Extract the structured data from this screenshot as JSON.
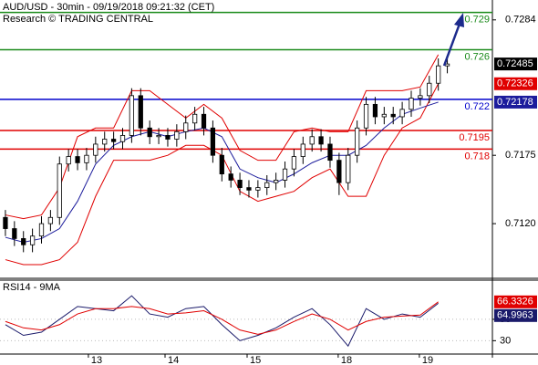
{
  "chart_data": [
    {
      "type": "candlestick",
      "title": "AUD/USD - 30min - 09/19/2018 09:21:32 (CET)",
      "subtitle": "Research © TRADING CENTRAL",
      "xlim": [
        -0.6,
        54
      ],
      "xticks": [
        {
          "value": 9.2,
          "label": "13"
        },
        {
          "value": 17.7,
          "label": "14"
        },
        {
          "value": 26.8,
          "label": "15"
        },
        {
          "value": 36.9,
          "label": "18"
        },
        {
          "value": 45.9,
          "label": "19"
        }
      ],
      "ylim": [
        0.7076,
        0.73
      ],
      "yticks": [
        0.7284,
        0.7175,
        {
          "value": 0.712,
          "label": "0.7120"
        }
      ],
      "candle_color": "#000000",
      "open": [
        0.7125,
        0.7116,
        0.7108,
        0.7103,
        0.711,
        0.712,
        0.7125,
        0.7168,
        0.7174,
        0.7169,
        0.7175,
        0.7184,
        0.7188,
        0.7186,
        0.7191,
        0.7223,
        0.7197,
        0.719,
        0.7191,
        0.7188,
        0.7194,
        0.7201,
        0.7208,
        0.7197,
        0.7175,
        0.716,
        0.7155,
        0.7149,
        0.7147,
        0.7149,
        0.7153,
        0.7155,
        0.7164,
        0.7174,
        0.7184,
        0.719,
        0.7184,
        0.7171,
        0.7153,
        0.7175,
        0.7197,
        0.7216,
        0.7206,
        0.7208,
        0.7206,
        0.7212,
        0.7221,
        0.7223,
        0.7233,
        0.7247
      ],
      "high": [
        0.7131,
        0.7122,
        0.7114,
        0.7116,
        0.7126,
        0.7131,
        0.7174,
        0.718,
        0.718,
        0.7181,
        0.719,
        0.7194,
        0.7194,
        0.7197,
        0.7229,
        0.7229,
        0.7203,
        0.7197,
        0.7197,
        0.72,
        0.7207,
        0.7214,
        0.7214,
        0.7203,
        0.7181,
        0.7166,
        0.7161,
        0.7155,
        0.7155,
        0.7159,
        0.7161,
        0.717,
        0.718,
        0.719,
        0.7196,
        0.7196,
        0.719,
        0.7177,
        0.7181,
        0.7203,
        0.7222,
        0.7222,
        0.7214,
        0.7214,
        0.7218,
        0.7227,
        0.7229,
        0.7239,
        0.7253,
        0.7255
      ],
      "low": [
        0.711,
        0.7102,
        0.7097,
        0.7097,
        0.7104,
        0.7114,
        0.7119,
        0.7162,
        0.7163,
        0.7163,
        0.7169,
        0.7178,
        0.718,
        0.718,
        0.7185,
        0.7191,
        0.7184,
        0.7184,
        0.7182,
        0.7182,
        0.7188,
        0.7195,
        0.7191,
        0.7169,
        0.7154,
        0.7149,
        0.7143,
        0.7141,
        0.7141,
        0.7143,
        0.7147,
        0.7149,
        0.7158,
        0.7168,
        0.7178,
        0.7178,
        0.7165,
        0.7143,
        0.7147,
        0.7169,
        0.7191,
        0.72,
        0.72,
        0.72,
        0.72,
        0.7206,
        0.7215,
        0.7217,
        0.7227,
        0.7241
      ],
      "close": [
        0.7116,
        0.7108,
        0.7103,
        0.711,
        0.712,
        0.7125,
        0.7168,
        0.7174,
        0.7169,
        0.7175,
        0.7184,
        0.7188,
        0.7186,
        0.7191,
        0.7223,
        0.7197,
        0.719,
        0.7191,
        0.7188,
        0.7194,
        0.7201,
        0.7208,
        0.7197,
        0.7175,
        0.716,
        0.7155,
        0.7149,
        0.7147,
        0.7149,
        0.7153,
        0.7155,
        0.7164,
        0.7174,
        0.7184,
        0.719,
        0.7184,
        0.7171,
        0.7153,
        0.7175,
        0.7197,
        0.7216,
        0.7206,
        0.7208,
        0.7206,
        0.7212,
        0.7221,
        0.7223,
        0.7233,
        0.7247,
        0.72485
      ],
      "overlay_x": [
        0,
        2,
        4,
        6,
        8,
        10,
        12,
        14,
        16,
        18,
        20,
        22,
        24,
        26,
        28,
        30,
        32,
        34,
        36,
        38,
        40,
        42,
        44,
        46,
        48
      ],
      "band_color": "#e00000",
      "upper_band": [
        0.7127,
        0.7124,
        0.7127,
        0.7149,
        0.719,
        0.7197,
        0.7197,
        0.7227,
        0.7227,
        0.7216,
        0.7205,
        0.7216,
        0.7205,
        0.7179,
        0.7171,
        0.7171,
        0.7194,
        0.7197,
        0.7194,
        0.7194,
        0.7227,
        0.7227,
        0.7227,
        0.723,
        0.7256
      ],
      "lower_band": [
        0.7091,
        0.7087,
        0.7087,
        0.7091,
        0.7105,
        0.7142,
        0.7171,
        0.7171,
        0.7171,
        0.7175,
        0.7183,
        0.7183,
        0.7175,
        0.7146,
        0.7138,
        0.7142,
        0.7146,
        0.7157,
        0.7164,
        0.7142,
        0.7142,
        0.7175,
        0.7197,
        0.7205,
        0.72326
      ],
      "middle_color": "#1c1c9c",
      "middle_band": [
        0.7109,
        0.7105,
        0.7108,
        0.7116,
        0.7138,
        0.7168,
        0.7183,
        0.719,
        0.7194,
        0.719,
        0.7194,
        0.7197,
        0.719,
        0.7164,
        0.7157,
        0.7153,
        0.716,
        0.7169,
        0.7175,
        0.7175,
        0.7183,
        0.7197,
        0.7208,
        0.7213,
        0.72178
      ],
      "levels": [
        {
          "value": 0.729,
          "color": "#1a8a1a"
        },
        {
          "value": 0.726,
          "color": "#1a8a1a"
        },
        {
          "value": 0.722,
          "color": "#0000cc"
        },
        {
          "value": 0.7195,
          "color": "#e00000"
        },
        {
          "value": 0.718,
          "color": "#e00000"
        }
      ]
    },
    {
      "type": "line",
      "title": "RSI14 - 9MA",
      "xlim": [
        -0.6,
        54
      ],
      "x": [
        0,
        2,
        4,
        6,
        8,
        10,
        12,
        14,
        16,
        18,
        20,
        22,
        24,
        26,
        28,
        30,
        32,
        34,
        36,
        38,
        40,
        42,
        44,
        46,
        48
      ],
      "ylim": [
        17.5,
        85.8
      ],
      "yticks": [
        30,
        50
      ],
      "series": [
        {
          "color": "#1a1a6a",
          "values": [
            45,
            35,
            38,
            50,
            62,
            60,
            58,
            72,
            55,
            52,
            60,
            62,
            45,
            30,
            35,
            42,
            52,
            60,
            45,
            25,
            60,
            50,
            55,
            52,
            64.9963
          ]
        },
        {
          "color": "#e00000",
          "values": [
            48,
            42,
            40,
            45,
            55,
            60,
            60,
            62,
            60,
            55,
            56,
            58,
            50,
            40,
            36,
            40,
            48,
            55,
            50,
            40,
            48,
            52,
            53,
            54,
            66.3326
          ]
        }
      ]
    }
  ]
}
